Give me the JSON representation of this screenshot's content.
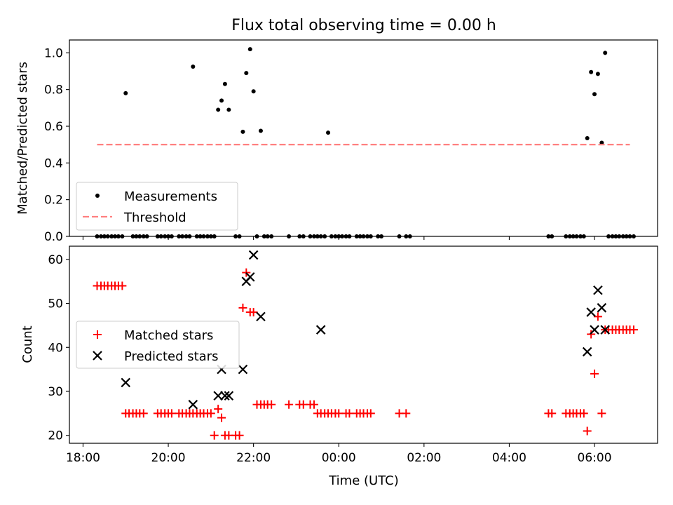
{
  "figure": {
    "title": "Flux total observing time = 0.00 h"
  },
  "chart_data": [
    {
      "type": "scatter",
      "ylabel": "Matched/Predicted stars",
      "xlabel": "",
      "ylim": [
        0,
        1.07
      ],
      "yticks": [
        0.0,
        0.2,
        0.4,
        0.6,
        0.8,
        1.0
      ],
      "ytick_labels": [
        "0.0",
        "0.2",
        "0.4",
        "0.6",
        "0.8",
        "1.0"
      ],
      "xlim": [
        17.68,
        31.48
      ],
      "legend": {
        "placement": "lower-left",
        "entries": [
          "Measurements",
          "Threshold"
        ]
      },
      "series": [
        {
          "name": "Measurements",
          "marker": "dot",
          "color": "#000000",
          "x": [
            18.33,
            18.42,
            18.5,
            18.58,
            18.67,
            18.75,
            18.83,
            18.92,
            19.0,
            19.17,
            19.25,
            19.33,
            19.42,
            19.5,
            19.75,
            19.83,
            19.92,
            20.0,
            20.08,
            20.25,
            20.33,
            20.42,
            20.5,
            20.58,
            20.67,
            20.75,
            20.83,
            20.92,
            21.0,
            21.08,
            21.17,
            21.25,
            21.33,
            21.42,
            21.58,
            21.67,
            21.75,
            21.83,
            21.92,
            22.0,
            22.08,
            22.17,
            22.25,
            22.33,
            22.42,
            22.83,
            23.08,
            23.17,
            23.33,
            23.42,
            23.5,
            23.58,
            23.67,
            23.75,
            23.83,
            23.92,
            24.0,
            24.08,
            24.17,
            24.25,
            24.42,
            24.5,
            24.58,
            24.67,
            24.75,
            25.42,
            25.58,
            25.67,
            24.92,
            25.0,
            28.92,
            29.0,
            29.33,
            29.42,
            29.5,
            29.58,
            29.67,
            29.75,
            29.83,
            29.92,
            30.0,
            30.08,
            30.17,
            30.25,
            30.33,
            30.42,
            30.5,
            30.58,
            30.67,
            30.75,
            30.83,
            30.92
          ],
          "y": [
            0,
            0,
            0,
            0,
            0,
            0,
            0,
            0,
            0.78,
            0,
            0,
            0,
            0,
            0,
            0,
            0,
            0,
            0,
            0,
            0,
            0,
            0,
            0,
            0.925,
            0,
            0,
            0,
            0,
            0,
            0,
            0.69,
            0.74,
            0.83,
            0.69,
            0,
            0,
            0.57,
            0.89,
            1.02,
            0.79,
            0,
            0.575,
            0,
            0,
            0,
            0,
            0,
            0,
            0,
            0,
            0,
            0,
            0,
            0.565,
            0,
            0,
            0,
            0,
            0,
            0,
            0,
            0,
            0,
            0,
            0,
            0,
            0,
            0,
            0,
            0,
            0,
            0,
            0,
            0,
            0,
            0,
            0,
            0,
            0.535,
            0.895,
            0.775,
            0.885,
            0.51,
            1.0,
            0,
            0,
            0,
            0,
            0,
            0,
            0,
            0
          ]
        },
        {
          "name": "Threshold",
          "marker": "dashed-line",
          "color": "#ff8080",
          "x": [
            18.33,
            30.83
          ],
          "y": [
            0.5,
            0.5
          ]
        }
      ]
    },
    {
      "type": "scatter",
      "ylabel": "Count",
      "xlabel": "Time (UTC)",
      "ylim": [
        18.2,
        63.0
      ],
      "yticks": [
        20,
        30,
        40,
        50,
        60
      ],
      "ytick_labels": [
        "20",
        "30",
        "40",
        "50",
        "60"
      ],
      "xlim": [
        17.68,
        31.48
      ],
      "xticks": [
        18,
        20,
        22,
        24,
        26,
        28,
        30
      ],
      "xtick_labels": [
        "18:00",
        "20:00",
        "22:00",
        "00:00",
        "02:00",
        "04:00",
        "06:00"
      ],
      "legend": {
        "placement": "center-left",
        "entries": [
          "Matched stars",
          "Predicted stars"
        ]
      },
      "series": [
        {
          "name": "Matched stars",
          "marker": "plus",
          "color": "#ff0000",
          "x": [
            18.33,
            18.42,
            18.5,
            18.58,
            18.67,
            18.75,
            18.83,
            18.92,
            19.0,
            19.08,
            19.17,
            19.25,
            19.33,
            19.42,
            19.75,
            19.83,
            19.92,
            20.0,
            20.08,
            20.25,
            20.33,
            20.42,
            20.5,
            20.58,
            20.67,
            20.75,
            20.83,
            20.92,
            21.0,
            21.08,
            21.17,
            21.25,
            21.33,
            21.42,
            21.58,
            21.67,
            21.75,
            21.83,
            21.92,
            22.0,
            22.08,
            22.17,
            22.25,
            22.33,
            22.42,
            22.83,
            23.08,
            23.17,
            23.33,
            23.42,
            23.5,
            23.58,
            23.67,
            23.75,
            23.83,
            23.92,
            24.0,
            24.17,
            24.25,
            24.42,
            24.5,
            24.58,
            24.67,
            24.75,
            25.42,
            25.58,
            28.92,
            29.0,
            29.33,
            29.42,
            29.5,
            29.58,
            29.67,
            29.75,
            29.83,
            29.92,
            30.0,
            30.08,
            30.17,
            30.25,
            30.33,
            30.42,
            30.5,
            30.58,
            30.67,
            30.75,
            30.83,
            30.92
          ],
          "y": [
            54,
            54,
            54,
            54,
            54,
            54,
            54,
            54,
            25,
            25,
            25,
            25,
            25,
            25,
            25,
            25,
            25,
            25,
            25,
            25,
            25,
            25,
            25,
            25,
            25,
            25,
            25,
            25,
            25,
            20,
            26,
            24,
            20,
            20,
            20,
            20,
            49,
            57,
            48,
            48,
            27,
            27,
            27,
            27,
            27,
            27,
            27,
            27,
            27,
            27,
            25,
            25,
            25,
            25,
            25,
            25,
            25,
            25,
            25,
            25,
            25,
            25,
            25,
            25,
            25,
            25,
            25,
            25,
            25,
            25,
            25,
            25,
            25,
            25,
            21,
            43,
            34,
            47,
            25,
            44,
            44,
            44,
            44,
            44,
            44,
            44,
            44,
            44
          ]
        },
        {
          "name": "Predicted stars",
          "marker": "x",
          "color": "#000000",
          "x": [
            19.0,
            20.58,
            21.17,
            21.25,
            21.33,
            21.42,
            21.75,
            21.83,
            21.92,
            22.0,
            22.17,
            23.58,
            29.83,
            29.92,
            30.0,
            30.08,
            30.17,
            30.25
          ],
          "y": [
            32,
            27,
            29,
            35,
            29,
            29,
            35,
            55,
            56,
            61,
            47,
            44,
            39,
            48,
            44,
            53,
            49,
            44
          ]
        }
      ]
    }
  ]
}
